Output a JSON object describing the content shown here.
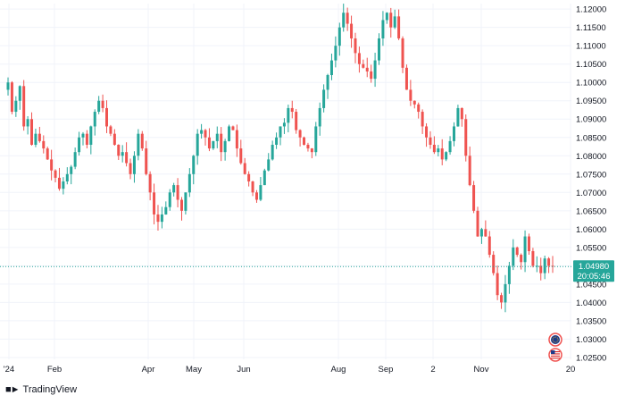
{
  "chart_data": {
    "type": "candlestick",
    "title": "",
    "xlabel": "",
    "ylabel": "",
    "ylim": [
      1.0245,
      1.1215
    ],
    "y_ticks": [
      "1.12000",
      "1.11500",
      "1.11000",
      "1.10500",
      "1.10000",
      "1.09500",
      "1.09000",
      "1.08500",
      "1.08000",
      "1.07500",
      "1.07000",
      "1.06500",
      "1.06000",
      "1.05500",
      "1.05000",
      "1.04500",
      "1.04000",
      "1.03500",
      "1.03000",
      "1.02500"
    ],
    "x_ticks": [
      "'24",
      "Feb",
      "Apr",
      "May",
      "Jun",
      "Aug",
      "Sep",
      "2",
      "Nov",
      "20"
    ],
    "last_price": "1.04980",
    "countdown": "20:05:46",
    "grid": true,
    "colors": {
      "up": "#26a69a",
      "down": "#ef5350",
      "price_line": "#26a69a",
      "grid": "#f0f3fa",
      "axis_text": "#131722"
    },
    "close_path": [
      1.1,
      1.092,
      1.095,
      1.099,
      1.088,
      1.09,
      1.083,
      1.086,
      1.084,
      1.082,
      1.079,
      1.076,
      1.074,
      1.071,
      1.073,
      1.075,
      1.077,
      1.081,
      1.085,
      1.086,
      1.083,
      1.088,
      1.092,
      1.095,
      1.093,
      1.088,
      1.086,
      1.083,
      1.08,
      1.081,
      1.078,
      1.075,
      1.08,
      1.086,
      1.082,
      1.075,
      1.07,
      1.064,
      1.062,
      1.064,
      1.066,
      1.07,
      1.072,
      1.068,
      1.065,
      1.07,
      1.075,
      1.08,
      1.086,
      1.087,
      1.085,
      1.082,
      1.084,
      1.086,
      1.081,
      1.084,
      1.088,
      1.087,
      1.082,
      1.078,
      1.075,
      1.073,
      1.07,
      1.068,
      1.072,
      1.076,
      1.079,
      1.083,
      1.085,
      1.088,
      1.089,
      1.093,
      1.092,
      1.087,
      1.085,
      1.083,
      1.082,
      1.081,
      1.088,
      1.093,
      1.098,
      1.102,
      1.106,
      1.11,
      1.115,
      1.119,
      1.116,
      1.112,
      1.108,
      1.105,
      1.104,
      1.103,
      1.101,
      1.106,
      1.112,
      1.117,
      1.119,
      1.115,
      1.118,
      1.112,
      1.104,
      1.098,
      1.095,
      1.094,
      1.092,
      1.088,
      1.085,
      1.083,
      1.081,
      1.082,
      1.079,
      1.081,
      1.084,
      1.088,
      1.093,
      1.09,
      1.08,
      1.072,
      1.065,
      1.058,
      1.06,
      1.058,
      1.053,
      1.048,
      1.042,
      1.04,
      1.045,
      1.05,
      1.055,
      1.053,
      1.051,
      1.058,
      1.054,
      1.05,
      1.05,
      1.048,
      1.052,
      1.05,
      1.0498
    ],
    "markers": [
      "eu-flag-icon",
      "us-flag-icon"
    ],
    "brand": "TradingView"
  }
}
